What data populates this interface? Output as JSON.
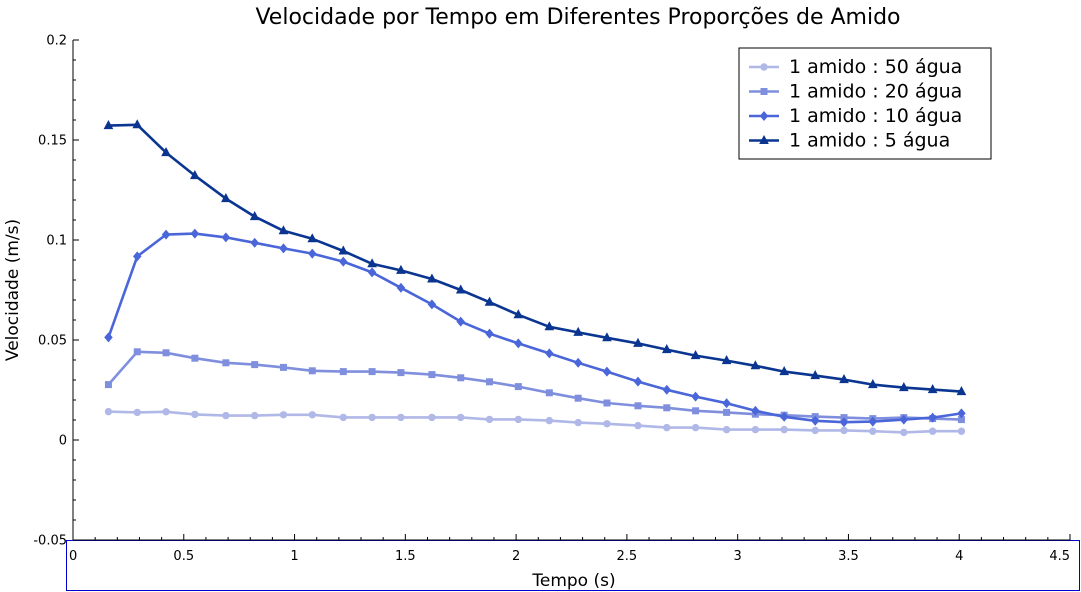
{
  "chart_data": {
    "type": "line",
    "title": "Velocidade por Tempo em Diferentes Proporções de Amido",
    "xlabel": "Tempo (s)",
    "ylabel": "Velocidade (m/s)",
    "xlim": [
      0,
      4.5
    ],
    "ylim": [
      -0.05,
      0.2
    ],
    "x_ticks": [
      0,
      0.5,
      1,
      1.5,
      2,
      2.5,
      3,
      3.5,
      4,
      4.5
    ],
    "x_tick_labels": [
      "0",
      "0.5",
      "1",
      "1.5",
      "2",
      "2.5",
      "3",
      "3.5",
      "4",
      "4.5"
    ],
    "y_ticks": [
      -0.05,
      0,
      0.05,
      0.1,
      0.15,
      0.2
    ],
    "y_tick_labels": [
      "-0.05",
      "0",
      "0.05",
      "0.1",
      "0.15",
      "0.2"
    ],
    "grid": false,
    "legend_position": "top-right",
    "x": [
      0.16,
      0.29,
      0.42,
      0.55,
      0.69,
      0.82,
      0.95,
      1.08,
      1.22,
      1.35,
      1.48,
      1.62,
      1.75,
      1.88,
      2.01,
      2.15,
      2.28,
      2.41,
      2.55,
      2.68,
      2.81,
      2.95,
      3.08,
      3.21,
      3.35,
      3.48,
      3.61,
      3.75,
      3.88,
      4.01
    ],
    "series": [
      {
        "name": "1 amido : 50 água",
        "color": "#b0b8e8",
        "marker": "circle",
        "values": [
          0.0142,
          0.0138,
          0.0141,
          0.0128,
          0.0122,
          0.0122,
          0.0126,
          0.0126,
          0.0113,
          0.0113,
          0.0113,
          0.0113,
          0.0113,
          0.0103,
          0.0103,
          0.0097,
          0.0087,
          0.0081,
          0.0072,
          0.0062,
          0.0062,
          0.0052,
          0.0052,
          0.0052,
          0.0048,
          0.0048,
          0.0044,
          0.0038,
          0.0044,
          0.0044
        ]
      },
      {
        "name": "1 amido : 20 água",
        "color": "#7f8fde",
        "marker": "square",
        "values": [
          0.0277,
          0.0441,
          0.0436,
          0.0409,
          0.0386,
          0.0377,
          0.0363,
          0.0346,
          0.0342,
          0.0342,
          0.0337,
          0.0327,
          0.0311,
          0.0291,
          0.0267,
          0.0236,
          0.0209,
          0.0185,
          0.0171,
          0.0161,
          0.0146,
          0.0138,
          0.0129,
          0.0124,
          0.0117,
          0.0112,
          0.0107,
          0.0112,
          0.0107,
          0.0102
        ]
      },
      {
        "name": "1 amido : 10 água",
        "color": "#4a66d8",
        "marker": "diamond",
        "values": [
          0.0513,
          0.0918,
          0.1027,
          0.1032,
          0.1013,
          0.0986,
          0.0958,
          0.0932,
          0.0892,
          0.0838,
          0.0761,
          0.0678,
          0.0592,
          0.0532,
          0.0483,
          0.0433,
          0.0386,
          0.0342,
          0.0292,
          0.0251,
          0.0217,
          0.0184,
          0.0146,
          0.0116,
          0.0096,
          0.0089,
          0.0092,
          0.0102,
          0.0112,
          0.0133
        ]
      },
      {
        "name": "1 amido : 5 água",
        "color": "#0a3590",
        "marker": "triangle",
        "values": [
          0.1572,
          0.1576,
          0.1437,
          0.1322,
          0.1207,
          0.1117,
          0.1046,
          0.1006,
          0.0945,
          0.0881,
          0.0848,
          0.0805,
          0.075,
          0.0689,
          0.0626,
          0.0566,
          0.0538,
          0.0511,
          0.0483,
          0.0452,
          0.0422,
          0.0397,
          0.0371,
          0.0342,
          0.0322,
          0.0302,
          0.0277,
          0.0262,
          0.0252,
          0.0242
        ]
      }
    ]
  }
}
